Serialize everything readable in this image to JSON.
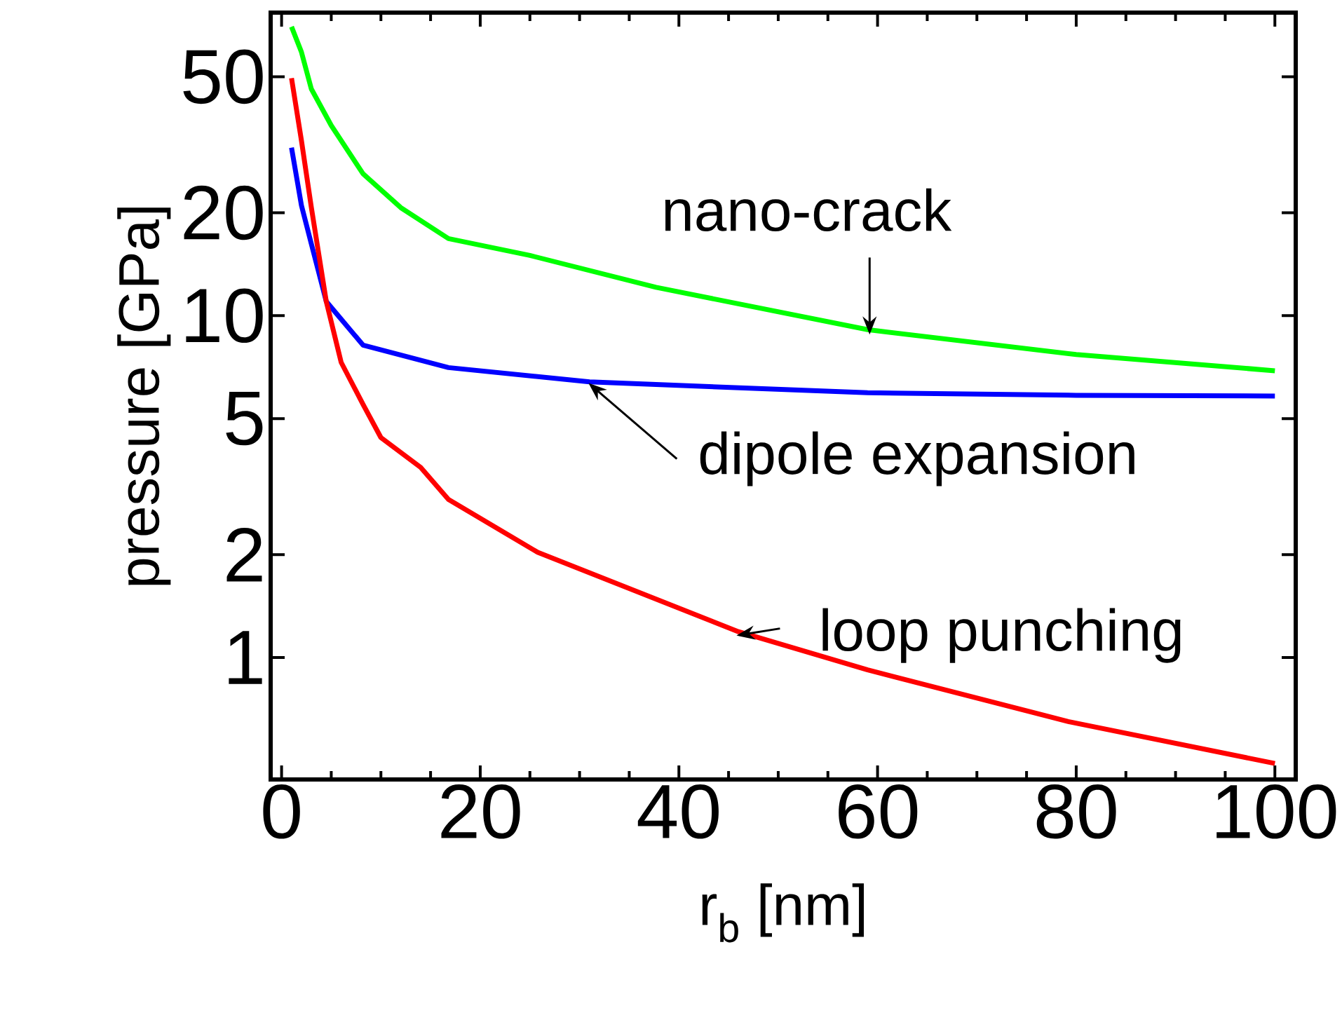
{
  "chart_data": {
    "type": "line",
    "xlabel": "r$_{b}$ [nm]",
    "ylabel": "pressure [GPa]",
    "log": "y",
    "xlim": [
      -1.1,
      102.1
    ],
    "ylim": [
      0.44,
      77
    ],
    "xticks": [
      0,
      20,
      40,
      60,
      80,
      100
    ],
    "yticks": [
      1,
      2,
      5,
      10,
      20,
      50
    ],
    "grid": false,
    "marker": "none",
    "line_style": "solid",
    "series": [
      {
        "color": "#00ff00",
        "x": [
          1,
          2,
          3,
          5,
          8.2,
          12,
          16.8,
          25,
          37.7,
          59,
          80,
          100
        ],
        "values": [
          70,
          59,
          46,
          36,
          26,
          20.7,
          16.8,
          15,
          12.1,
          9.1,
          7.7,
          6.9
        ]
      },
      {
        "color": "#0000ff",
        "x": [
          1,
          2,
          3,
          4.5,
          8.2,
          16.8,
          31,
          59,
          80,
          100
        ],
        "values": [
          31,
          21,
          16.2,
          11,
          8.2,
          7.05,
          6.4,
          5.95,
          5.85,
          5.82
        ]
      },
      {
        "color": "#ff0000",
        "x": [
          1,
          2,
          3,
          4.5,
          6,
          8.2,
          10,
          14,
          16.8,
          25.8,
          46,
          59,
          79.2,
          100
        ],
        "values": [
          49.5,
          32.5,
          20.7,
          11,
          7.3,
          5.5,
          4.4,
          3.6,
          2.9,
          2.03,
          1.19,
          0.92,
          0.65,
          0.49
        ]
      }
    ],
    "annotations": [
      {
        "text": "nano-crack",
        "x": 59.2,
        "y": 8.8
      },
      {
        "text": "dipole expansion",
        "x": 30.9,
        "y": 6.35
      },
      {
        "text": "loop punching",
        "x": 45.8,
        "y": 1.16
      }
    ]
  }
}
